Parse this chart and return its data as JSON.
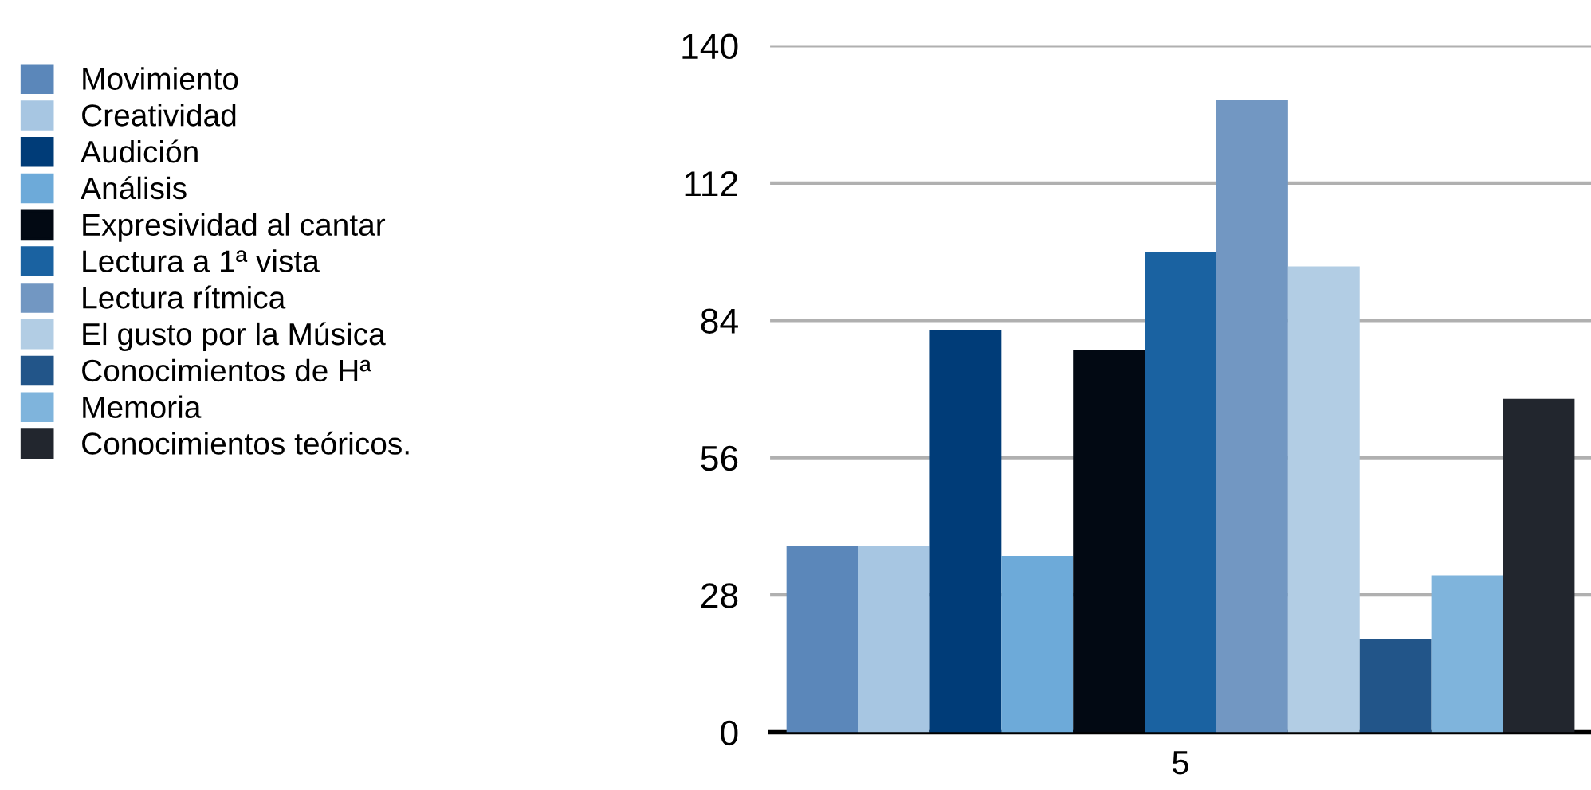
{
  "chart_data": {
    "type": "bar",
    "categories": [
      "5"
    ],
    "series": [
      {
        "name": "Movimiento",
        "color": "#5b87ba",
        "values": [
          38
        ]
      },
      {
        "name": "Creatividad",
        "color": "#a7c6e2",
        "values": [
          38
        ]
      },
      {
        "name": "Audición",
        "color": "#003c78",
        "values": [
          82
        ]
      },
      {
        "name": "Análisis",
        "color": "#6daad9",
        "values": [
          36
        ]
      },
      {
        "name": "Expresividad al cantar",
        "color": "#020913",
        "values": [
          78
        ]
      },
      {
        "name": "Lectura a 1ª vista",
        "color": "#1a62a1",
        "values": [
          98
        ]
      },
      {
        "name": "Lectura rítmica",
        "color": "#7297c2",
        "values": [
          129
        ]
      },
      {
        "name": "El gusto por la Música",
        "color": "#b2cde4",
        "values": [
          95
        ]
      },
      {
        "name": "Conocimientos de Hª",
        "color": "#225589",
        "values": [
          19
        ]
      },
      {
        "name": "Memoria",
        "color": "#7fb4dc",
        "values": [
          32
        ]
      },
      {
        "name": "Conocimientos teóricos.",
        "color": "#22262e",
        "values": [
          68
        ]
      }
    ],
    "ylim": [
      0,
      140
    ],
    "yticks": [
      0,
      28,
      56,
      84,
      112,
      140
    ],
    "grid": "y",
    "legend": "left"
  }
}
